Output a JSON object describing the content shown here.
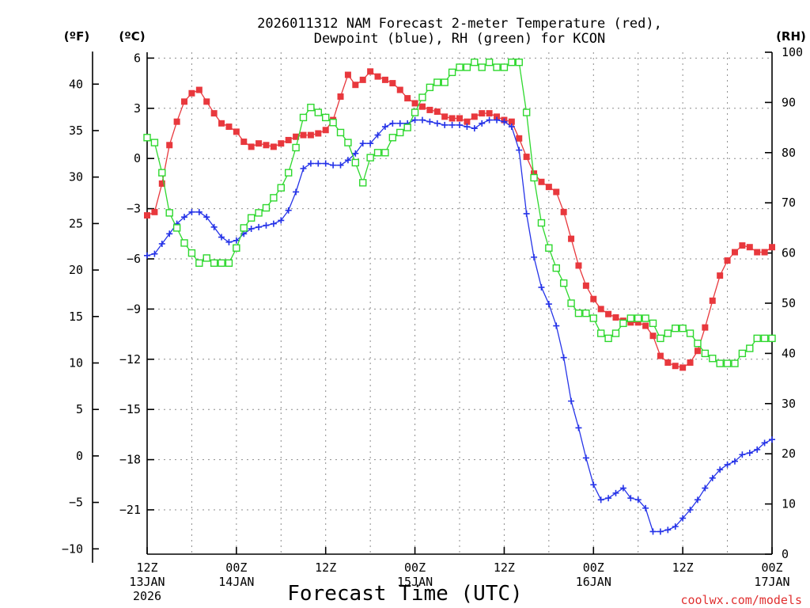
{
  "chart_data": {
    "type": "line",
    "title_line1": "2026011312 NAM Forecast 2-meter Temperature (red),",
    "title_line2": "Dewpoint (blue), RH (green) for KCON",
    "xlabel": "Forecast Time (UTC)",
    "credit": "coolwx.com/models",
    "units": {
      "fahrenheit": "(ºF)",
      "celsius": "(ºC)",
      "rh": "(RH)"
    },
    "x_step_hours": 1,
    "x_range": [
      0,
      84
    ],
    "x_ticks": [
      {
        "hour": 0,
        "line1": "12Z",
        "line2": "13JAN",
        "line3": "2026"
      },
      {
        "hour": 12,
        "line1": "00Z",
        "line2": "14JAN",
        "line3": ""
      },
      {
        "hour": 24,
        "line1": "12Z",
        "line2": "",
        "line3": ""
      },
      {
        "hour": 36,
        "line1": "00Z",
        "line2": "15JAN",
        "line3": ""
      },
      {
        "hour": 48,
        "line1": "12Z",
        "line2": "",
        "line3": ""
      },
      {
        "hour": 60,
        "line1": "00Z",
        "line2": "16JAN",
        "line3": ""
      },
      {
        "hour": 72,
        "line1": "12Z",
        "line2": "",
        "line3": ""
      },
      {
        "hour": 84,
        "line1": "00Z",
        "line2": "17JAN",
        "line3": ""
      }
    ],
    "y_celsius": {
      "range": [
        -23.65,
        6.35
      ],
      "ticks": [
        "6",
        "3",
        "0",
        "−3",
        "−6",
        "−9",
        "−12",
        "−15",
        "−18",
        "−21"
      ],
      "tick_values": [
        6,
        3,
        0,
        -3,
        -6,
        -9,
        -12,
        -15,
        -18,
        -21
      ]
    },
    "y_fahrenheit": {
      "ticks": [
        "40",
        "35",
        "30",
        "25",
        "20",
        "15",
        "10",
        "5",
        "0",
        "−5",
        "−10"
      ],
      "tick_values": [
        40,
        35,
        30,
        25,
        20,
        15,
        10,
        5,
        0,
        -5,
        -10
      ]
    },
    "y_rh": {
      "range": [
        0,
        100
      ],
      "ticks": [
        "100",
        "90",
        "80",
        "70",
        "60",
        "50",
        "40",
        "30",
        "20",
        "10",
        "0"
      ],
      "tick_values": [
        100,
        90,
        80,
        70,
        60,
        50,
        40,
        30,
        20,
        10,
        0
      ]
    },
    "series": [
      {
        "name": "Temperature",
        "axis": "celsius",
        "color": "#e8383d",
        "marker": "filled-square",
        "values": [
          -3.4,
          -3.2,
          -1.5,
          0.8,
          2.2,
          3.4,
          3.9,
          4.1,
          3.4,
          2.7,
          2.1,
          1.9,
          1.6,
          1.0,
          0.7,
          0.9,
          0.8,
          0.7,
          0.9,
          1.1,
          1.3,
          1.4,
          1.4,
          1.5,
          1.7,
          2.3,
          3.7,
          5.0,
          4.4,
          4.7,
          5.2,
          4.9,
          4.7,
          4.5,
          4.1,
          3.6,
          3.3,
          3.1,
          2.9,
          2.8,
          2.5,
          2.4,
          2.4,
          2.2,
          2.5,
          2.7,
          2.7,
          2.5,
          2.3,
          2.2,
          1.2,
          0.1,
          -0.9,
          -1.4,
          -1.7,
          -2.0,
          -3.2,
          -4.8,
          -6.4,
          -7.6,
          -8.4,
          -9.0,
          -9.3,
          -9.5,
          -9.7,
          -9.8,
          -9.8,
          -10.0,
          -10.6,
          -11.8,
          -12.2,
          -12.4,
          -12.5,
          -12.2,
          -11.5,
          -10.1,
          -8.5,
          -7.0,
          -6.1,
          -5.6,
          -5.2,
          -5.3,
          -5.6,
          -5.6,
          -5.3
        ]
      },
      {
        "name": "Dewpoint",
        "axis": "celsius",
        "color": "#2533e8",
        "marker": "plus",
        "values": [
          -5.8,
          -5.7,
          -5.1,
          -4.5,
          -3.9,
          -3.5,
          -3.2,
          -3.2,
          -3.5,
          -4.1,
          -4.7,
          -5.0,
          -4.9,
          -4.5,
          -4.2,
          -4.1,
          -4.0,
          -3.9,
          -3.7,
          -3.1,
          -2.0,
          -0.6,
          -0.3,
          -0.3,
          -0.3,
          -0.4,
          -0.4,
          -0.1,
          0.3,
          0.9,
          0.9,
          1.4,
          1.9,
          2.1,
          2.1,
          2.1,
          2.3,
          2.3,
          2.2,
          2.1,
          2.0,
          2.0,
          2.0,
          1.9,
          1.8,
          2.1,
          2.3,
          2.3,
          2.2,
          1.9,
          0.5,
          -3.3,
          -5.9,
          -7.7,
          -8.7,
          -10.0,
          -11.9,
          -14.5,
          -16.1,
          -17.9,
          -19.5,
          -20.4,
          -20.3,
          -20.0,
          -19.7,
          -20.3,
          -20.4,
          -20.9,
          -22.3,
          -22.3,
          -22.2,
          -22.0,
          -21.5,
          -21.0,
          -20.4,
          -19.7,
          -19.1,
          -18.6,
          -18.3,
          -18.1,
          -17.7,
          -17.6,
          -17.4,
          -17.0,
          -16.8
        ]
      },
      {
        "name": "RH",
        "axis": "rh",
        "color": "#2ed82e",
        "marker": "open-square",
        "values": [
          83,
          82,
          76,
          68,
          65,
          62,
          60,
          58,
          59,
          58,
          58,
          58,
          61,
          65,
          67,
          68,
          69,
          71,
          73,
          76,
          81,
          87,
          89,
          88,
          87,
          86,
          84,
          82,
          78,
          74,
          79,
          80,
          80,
          83,
          84,
          85,
          88,
          91,
          93,
          94,
          94,
          96,
          97,
          97,
          98,
          97,
          98,
          97,
          97,
          98,
          98,
          88,
          75,
          66,
          61,
          57,
          54,
          50,
          48,
          48,
          47,
          44,
          43,
          44,
          46,
          47,
          47,
          47,
          46,
          43,
          44,
          45,
          45,
          44,
          42,
          40,
          39,
          38,
          38,
          38,
          40,
          41,
          43,
          43,
          43
        ]
      }
    ]
  }
}
